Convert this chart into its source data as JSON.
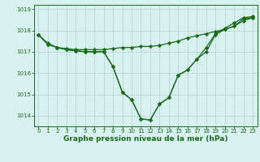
{
  "x": [
    0,
    1,
    2,
    3,
    4,
    5,
    6,
    7,
    8,
    9,
    10,
    11,
    12,
    13,
    14,
    15,
    16,
    17,
    18,
    19,
    20,
    21,
    22,
    23
  ],
  "line1": [
    1017.8,
    1017.4,
    1017.2,
    1017.1,
    1017.05,
    1017.0,
    1017.0,
    1017.0,
    1016.3,
    1015.1,
    1014.75,
    1013.85,
    1013.8,
    1014.55,
    1014.85,
    1015.9,
    1016.15,
    1016.65,
    1017.0,
    1017.8,
    1018.05,
    1018.2,
    1018.55,
    1018.6
  ],
  "line2": [
    1017.8,
    1017.35,
    1017.2,
    1017.1,
    1017.05,
    1017.0,
    1017.0,
    1017.0,
    1016.3,
    1015.1,
    1014.75,
    1013.85,
    1013.8,
    1014.55,
    1014.85,
    1015.9,
    1016.15,
    1016.65,
    1017.2,
    1017.85,
    1018.1,
    1018.35,
    1018.6,
    1018.65
  ],
  "line3": [
    1017.8,
    1017.35,
    1017.2,
    1017.15,
    1017.1,
    1017.1,
    1017.1,
    1017.1,
    1017.15,
    1017.2,
    1017.2,
    1017.25,
    1017.25,
    1017.3,
    1017.4,
    1017.5,
    1017.65,
    1017.75,
    1017.85,
    1017.95,
    1018.05,
    1018.2,
    1018.45,
    1018.6
  ],
  "ylim": [
    1013.5,
    1019.2
  ],
  "xlim": [
    -0.5,
    23.5
  ],
  "yticks": [
    1014,
    1015,
    1016,
    1017,
    1018,
    1019
  ],
  "xticks": [
    0,
    1,
    2,
    3,
    4,
    5,
    6,
    7,
    8,
    9,
    10,
    11,
    12,
    13,
    14,
    15,
    16,
    17,
    18,
    19,
    20,
    21,
    22,
    23
  ],
  "xlabel": "Graphe pression niveau de la mer (hPa)",
  "line_color": "#1a6b1a",
  "bg_color": "#d8f0f0",
  "grid_color": "#b0d4d4",
  "marker": "D",
  "markersize": 2.2,
  "linewidth": 0.9,
  "xlabel_fontsize": 6.5,
  "tick_fontsize": 5.0
}
